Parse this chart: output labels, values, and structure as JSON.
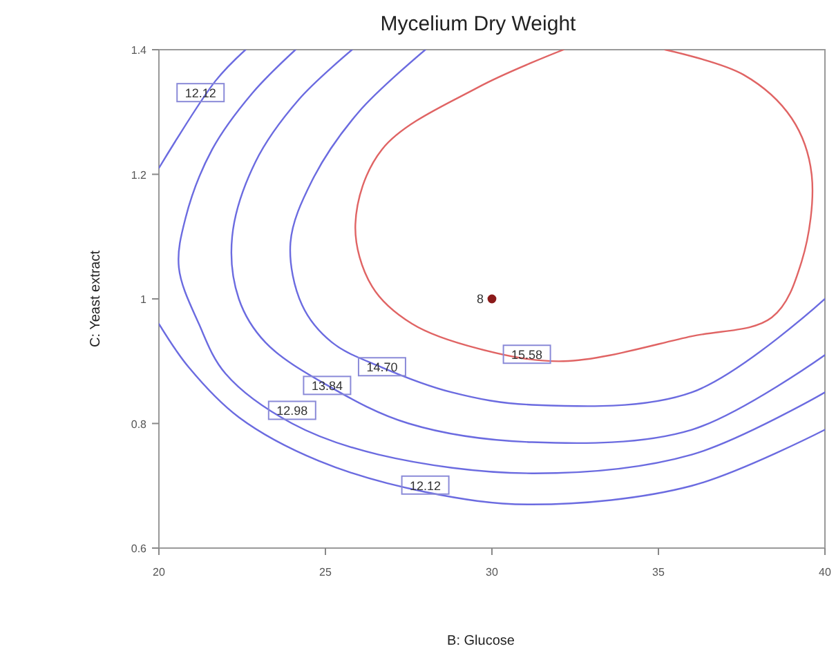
{
  "chart_data": {
    "type": "line",
    "title": "Mycelium Dry Weight",
    "xlabel": "B: Glucose",
    "ylabel": "C: Yeast extract",
    "xlim": [
      20,
      40
    ],
    "ylim": [
      0.6,
      1.4
    ],
    "xticks": [
      20,
      25,
      30,
      35,
      40
    ],
    "yticks": [
      0.6,
      0.8,
      1.0,
      1.2,
      1.4
    ],
    "grid": false,
    "marker": "none",
    "line_style": "solid",
    "series": [
      {
        "color": "#6b6be0",
        "x": [
          20,
          20.9,
          22.4,
          24.8,
          28.0,
          31.2,
          36.0,
          40
        ],
        "values": [
          0.96,
          0.89,
          0.81,
          0.74,
          0.69,
          0.67,
          0.7,
          0.79
        ]
      },
      {
        "color": "#6b6be0",
        "x": [
          20,
          21.7,
          22.6
        ],
        "values": [
          1.21,
          1.35,
          1.4
        ]
      },
      {
        "color": "#6b6be0",
        "x": [
          24.1,
          22.8,
          21.6,
          20.8,
          20.6,
          21.2,
          22.0,
          24.0,
          26.6,
          31.2,
          36.0,
          40
        ],
        "values": [
          1.4,
          1.33,
          1.24,
          1.13,
          1.05,
          0.96,
          0.88,
          0.8,
          0.75,
          0.72,
          0.75,
          0.85
        ]
      },
      {
        "color": "#6b6be0",
        "x": [
          25.8,
          24.2,
          22.9,
          22.2,
          22.4,
          23.2,
          25.1,
          27.5,
          31.2,
          36.0,
          40
        ],
        "values": [
          1.4,
          1.32,
          1.22,
          1.1,
          1.0,
          0.93,
          0.86,
          0.8,
          0.77,
          0.79,
          0.91
        ]
      },
      {
        "color": "#6b6be0",
        "x": [
          28.0,
          26.0,
          24.6,
          23.95,
          24.3,
          25.2,
          26.7,
          28.8,
          31.2,
          36.0,
          40
        ],
        "values": [
          1.4,
          1.3,
          1.19,
          1.09,
          0.99,
          0.93,
          0.89,
          0.85,
          0.83,
          0.85,
          1.0
        ]
      },
      {
        "color": "#e06464",
        "x": [
          32.15,
          29.6,
          26.7,
          25.9,
          26.4,
          27.6,
          29.6,
          32.15,
          36.0,
          38.4,
          39.3,
          39.6,
          39.0,
          37.55,
          35.2
        ],
        "values": [
          1.4,
          1.34,
          1.24,
          1.12,
          1.02,
          0.96,
          0.92,
          0.9,
          0.94,
          0.97,
          1.06,
          1.2,
          1.29,
          1.36,
          1.4
        ]
      },
      {
        "type": "scatter",
        "color": "#8b1a1a",
        "marker": "circle",
        "x": [
          30
        ],
        "values": [
          1.0
        ]
      }
    ],
    "annotations": [
      {
        "text": "12.12",
        "x": 21.25,
        "y": 1.33
      },
      {
        "text": "12.98",
        "x": 24.0,
        "y": 0.82
      },
      {
        "text": "13.84",
        "x": 25.05,
        "y": 0.86
      },
      {
        "text": "14.70",
        "x": 26.7,
        "y": 0.89
      },
      {
        "text": "15.58",
        "x": 31.05,
        "y": 0.91
      },
      {
        "text": "12.12",
        "x": 28.0,
        "y": 0.7
      },
      {
        "text": "8",
        "x": 30,
        "y": 1.0
      }
    ]
  }
}
